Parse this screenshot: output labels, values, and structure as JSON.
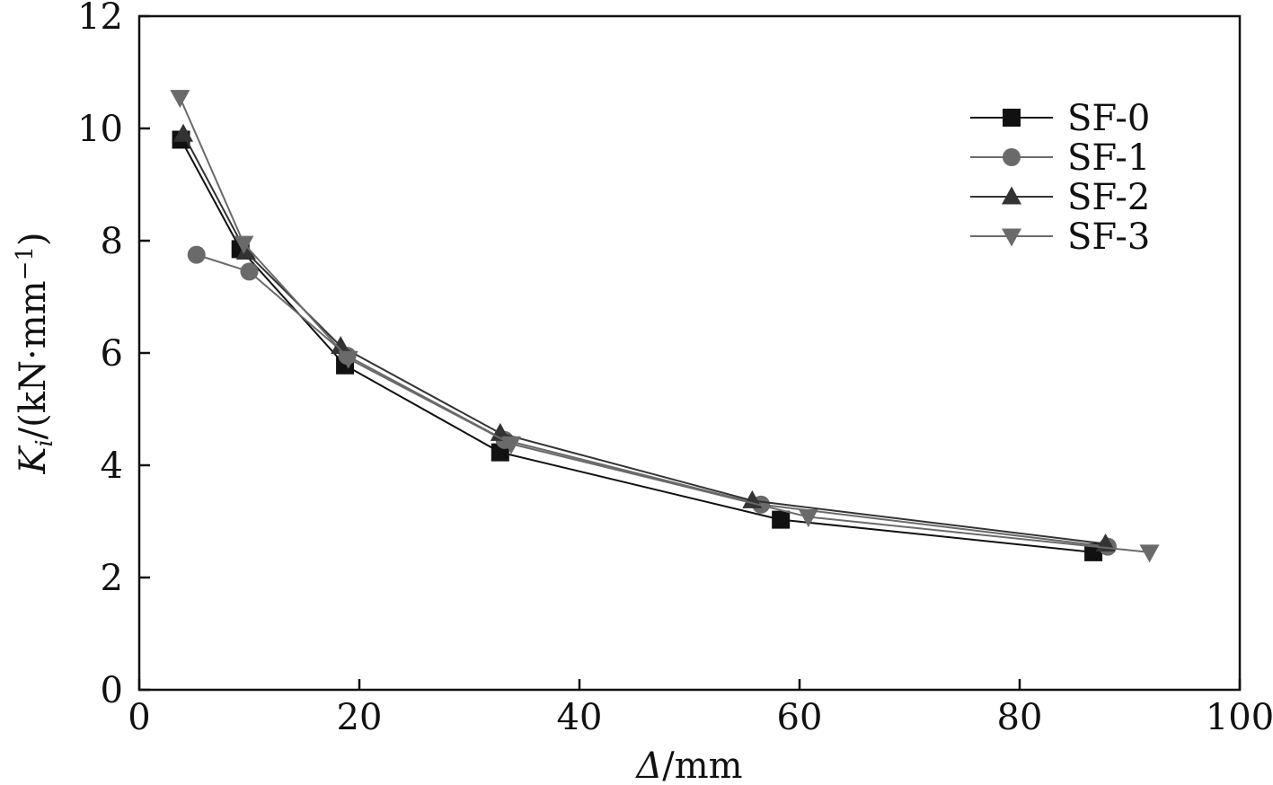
{
  "chart_data": {
    "type": "line",
    "title": "",
    "xlabel": {
      "symbol": "Δ",
      "unit": "/mm"
    },
    "ylabel": {
      "symbol": "K",
      "subscript": "i",
      "unit": "/(kN·mm",
      "exponent": "−1",
      "close": ")"
    },
    "xlim": [
      0,
      100
    ],
    "ylim": [
      0,
      12
    ],
    "xticks": [
      "0",
      "20",
      "40",
      "60",
      "80",
      "100"
    ],
    "yticks": [
      "0",
      "2",
      "4",
      "6",
      "8",
      "10",
      "12"
    ],
    "grid": false,
    "legend_position": "top-right",
    "series": [
      {
        "name": "SF-0",
        "marker": "square",
        "color": "#111111",
        "x": [
          3.8,
          9.2,
          18.7,
          32.8,
          58.3,
          86.7
        ],
        "y": [
          9.8,
          7.85,
          5.78,
          4.23,
          3.03,
          2.45
        ]
      },
      {
        "name": "SF-1",
        "marker": "circle",
        "color": "#6a6a6a",
        "x": [
          5.2,
          10.0,
          18.9,
          33.2,
          56.5,
          88.0
        ],
        "y": [
          7.75,
          7.45,
          5.95,
          4.45,
          3.3,
          2.55
        ]
      },
      {
        "name": "SF-2",
        "marker": "triangle-up",
        "color": "#333333",
        "x": [
          4.0,
          9.7,
          18.3,
          32.8,
          55.7,
          87.8
        ],
        "y": [
          9.9,
          7.8,
          6.12,
          4.57,
          3.37,
          2.6
        ]
      },
      {
        "name": "SF-3",
        "marker": "triangle-down",
        "color": "#6a6a6a",
        "x": [
          3.7,
          9.5,
          19.0,
          33.8,
          60.8,
          91.8
        ],
        "y": [
          10.55,
          7.95,
          5.9,
          4.38,
          3.08,
          2.45
        ]
      }
    ]
  }
}
